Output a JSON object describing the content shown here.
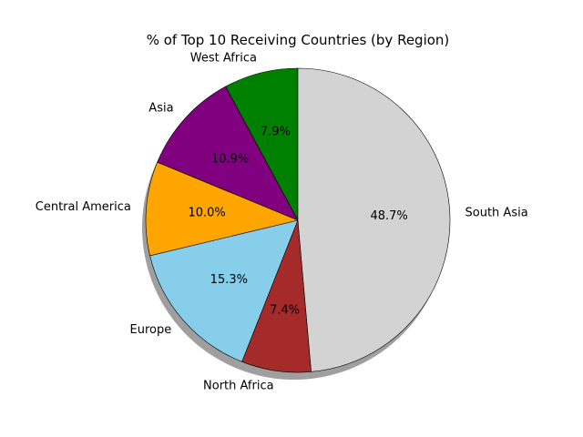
{
  "chart_data": {
    "type": "pie",
    "title": "% of Top 10 Receiving Countries (by Region)",
    "start_angle_deg": 90,
    "direction": "counterclockwise",
    "shadow": true,
    "legend": "none",
    "slices": [
      {
        "label": "West Africa",
        "value": 7.9,
        "pct_label": "7.9%",
        "color": "#008000"
      },
      {
        "label": "Asia",
        "value": 10.9,
        "pct_label": "10.9%",
        "color": "#800080"
      },
      {
        "label": "Central America",
        "value": 10.0,
        "pct_label": "10.0%",
        "color": "#FFA500"
      },
      {
        "label": "Europe",
        "value": 15.3,
        "pct_label": "15.3%",
        "color": "#87CEEB"
      },
      {
        "label": "North Africa",
        "value": 7.4,
        "pct_label": "7.4%",
        "color": "#A52A2A"
      },
      {
        "label": "South Asia",
        "value": 48.7,
        "pct_label": "48.7%",
        "color": "#D3D3D3"
      }
    ]
  }
}
